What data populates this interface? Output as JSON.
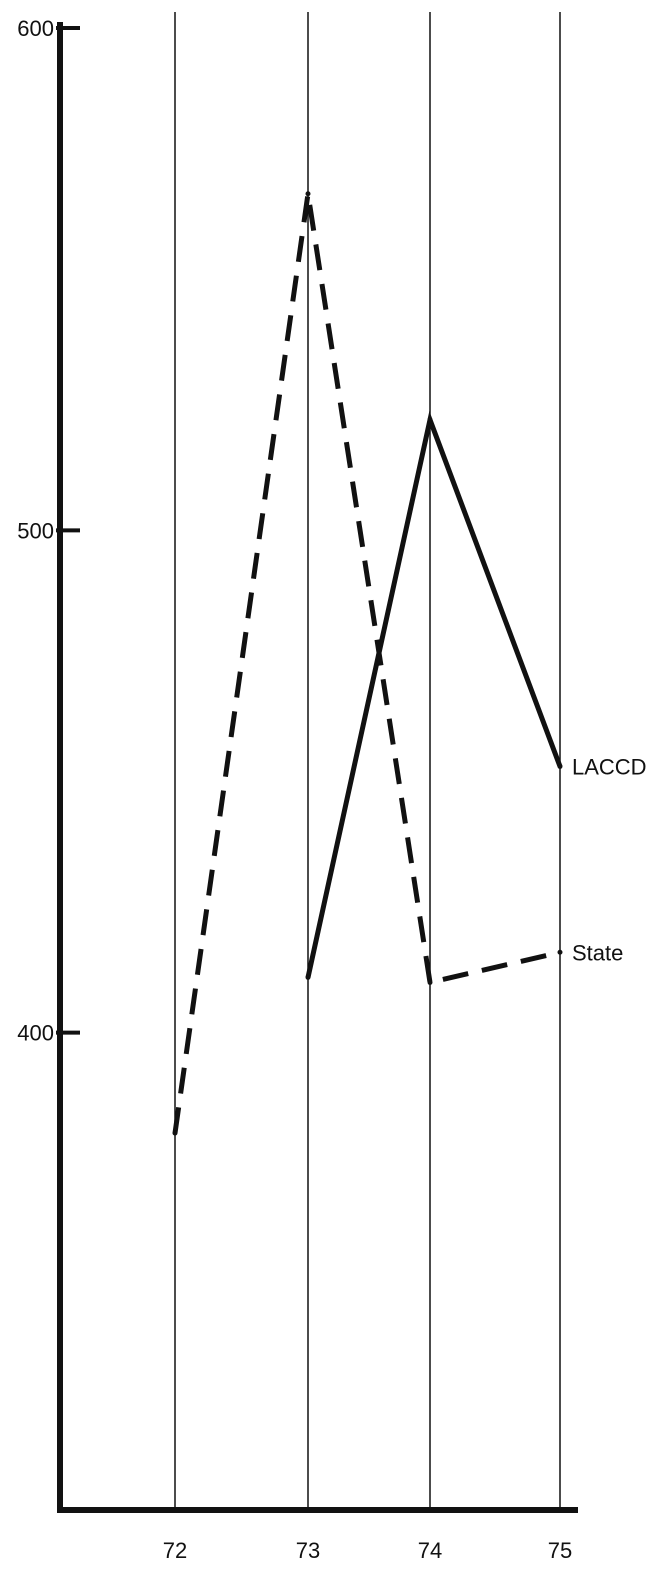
{
  "chart_data": {
    "type": "line",
    "title": "",
    "xlabel": "",
    "ylabel": "",
    "x": [
      "72",
      "73",
      "74",
      "75"
    ],
    "ylim": [
      300,
      600
    ],
    "y_ticks": [
      "400",
      "500",
      "600"
    ],
    "grid": "vertical",
    "series": [
      {
        "name": "LACCD",
        "style": "solid",
        "x": [
          "73",
          "74",
          "75"
        ],
        "values": [
          411,
          522,
          453
        ]
      },
      {
        "name": "State",
        "style": "dashed",
        "x": [
          "72",
          "73",
          "74",
          "75"
        ],
        "values": [
          380,
          567,
          410,
          416
        ]
      }
    ],
    "colors": {
      "ink": "#111111",
      "background": "#ffffff"
    }
  }
}
